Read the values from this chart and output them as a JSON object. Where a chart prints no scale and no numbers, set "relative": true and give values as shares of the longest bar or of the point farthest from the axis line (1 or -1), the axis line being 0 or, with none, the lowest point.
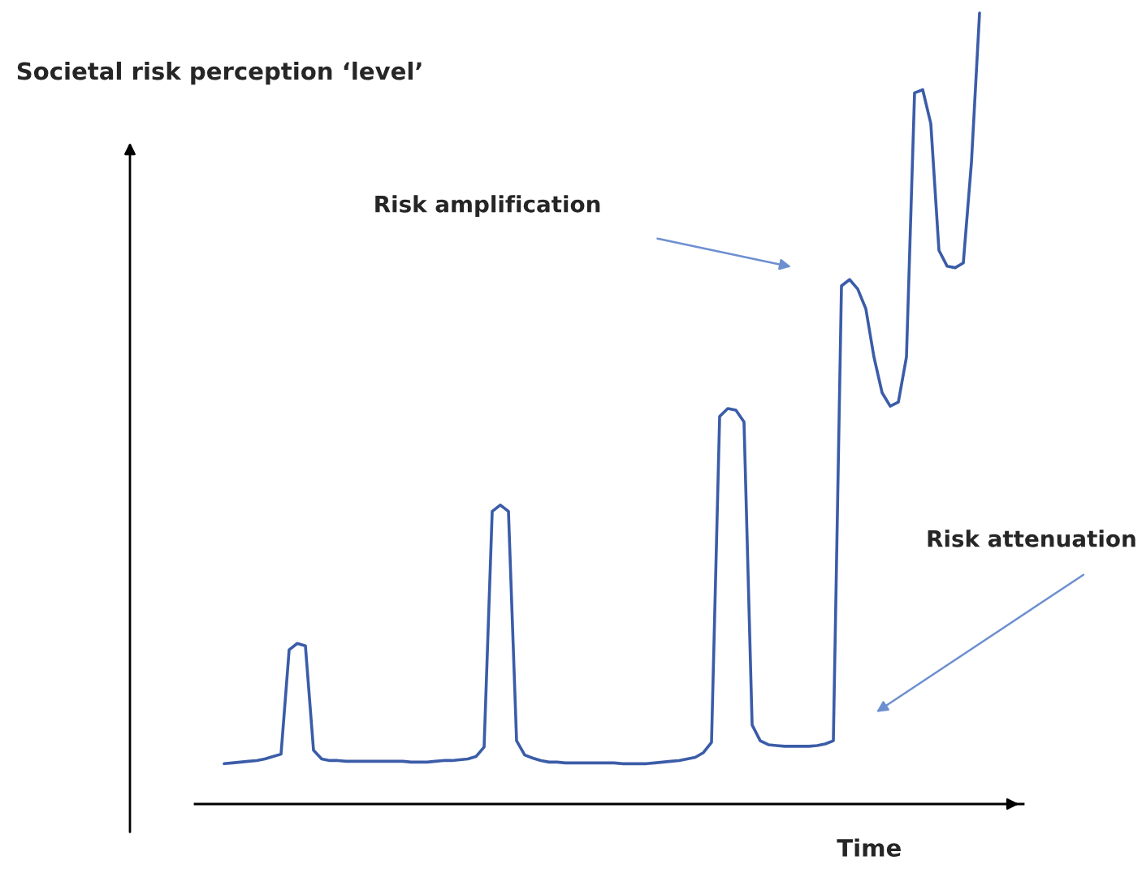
{
  "chart_data": {
    "type": "line",
    "relative": true,
    "xlabel": "Time",
    "ylabel": "Societal risk perception ‘level’",
    "tick_labels": false,
    "marker": "none",
    "line_style": "solid",
    "categories": [
      null,
      null,
      null,
      null,
      null,
      null,
      null,
      null,
      null,
      null,
      null,
      null,
      null,
      null,
      null,
      null,
      null,
      null,
      null,
      null,
      null,
      null,
      null,
      null,
      null,
      null,
      null,
      null,
      null,
      null,
      null,
      null,
      null,
      null,
      null,
      null,
      null,
      null,
      null,
      null,
      null,
      null,
      null,
      null,
      null,
      null,
      null,
      null,
      null,
      null,
      null,
      null,
      null,
      null,
      null,
      null,
      null,
      null,
      null,
      null,
      null,
      null,
      null,
      null,
      null,
      null,
      null,
      null,
      null,
      null,
      null,
      null,
      null,
      null,
      null,
      null,
      null,
      null,
      null,
      null,
      null,
      null,
      null,
      null,
      null,
      null,
      null,
      null,
      null,
      null,
      null,
      null,
      null,
      null
    ],
    "series": [
      {
        "color": "#3b5ca8",
        "values": [
          0.051,
          0.052,
          0.053,
          0.054,
          0.055,
          0.057,
          0.06,
          0.063,
          0.195,
          0.203,
          0.2,
          0.068,
          0.057,
          0.055,
          0.055,
          0.054,
          0.054,
          0.054,
          0.054,
          0.054,
          0.054,
          0.054,
          0.054,
          0.053,
          0.053,
          0.053,
          0.054,
          0.055,
          0.055,
          0.056,
          0.057,
          0.06,
          0.072,
          0.37,
          0.378,
          0.37,
          0.08,
          0.062,
          0.058,
          0.055,
          0.053,
          0.053,
          0.052,
          0.052,
          0.052,
          0.052,
          0.052,
          0.052,
          0.052,
          0.051,
          0.051,
          0.051,
          0.051,
          0.052,
          0.053,
          0.054,
          0.055,
          0.057,
          0.059,
          0.065,
          0.078,
          0.49,
          0.5,
          0.498,
          0.483,
          0.1,
          0.08,
          0.075,
          0.074,
          0.073,
          0.073,
          0.073,
          0.073,
          0.074,
          0.076,
          0.08,
          0.655,
          0.663,
          0.651,
          0.626,
          0.565,
          0.52,
          0.503,
          0.508,
          0.565,
          0.899,
          0.903,
          0.86,
          0.7,
          0.68,
          0.678,
          0.684,
          0.811,
          1.0
        ]
      }
    ],
    "annotations": [
      "Risk amplification",
      "Risk attenuation"
    ]
  }
}
